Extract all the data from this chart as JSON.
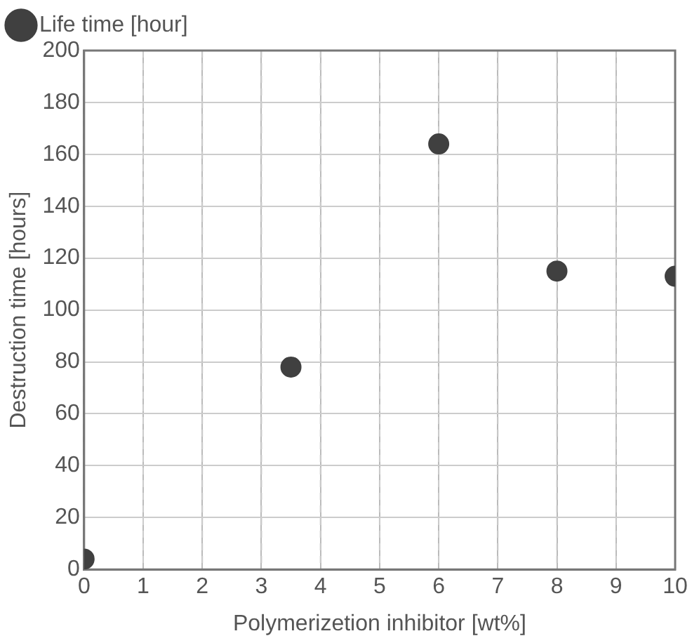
{
  "chart_data": {
    "type": "scatter",
    "xlabel": "Polymerizetion inhibitor [wt%]",
    "ylabel": "Destruction time [hours]",
    "x": [
      0,
      3.5,
      6,
      8,
      10
    ],
    "series": [
      {
        "name": "Life time [hour]",
        "color": "#404040",
        "values": [
          4,
          78,
          164,
          115,
          113
        ]
      }
    ],
    "xlim": [
      0,
      10
    ],
    "xticks": [
      0,
      1,
      2,
      3,
      4,
      5,
      6,
      7,
      8,
      9,
      10
    ],
    "ylim": [
      0,
      200
    ],
    "yticks": [
      0,
      20,
      40,
      60,
      80,
      100,
      120,
      140,
      160,
      180,
      200
    ],
    "grid": true,
    "legend": "top left",
    "marker": "circle"
  }
}
